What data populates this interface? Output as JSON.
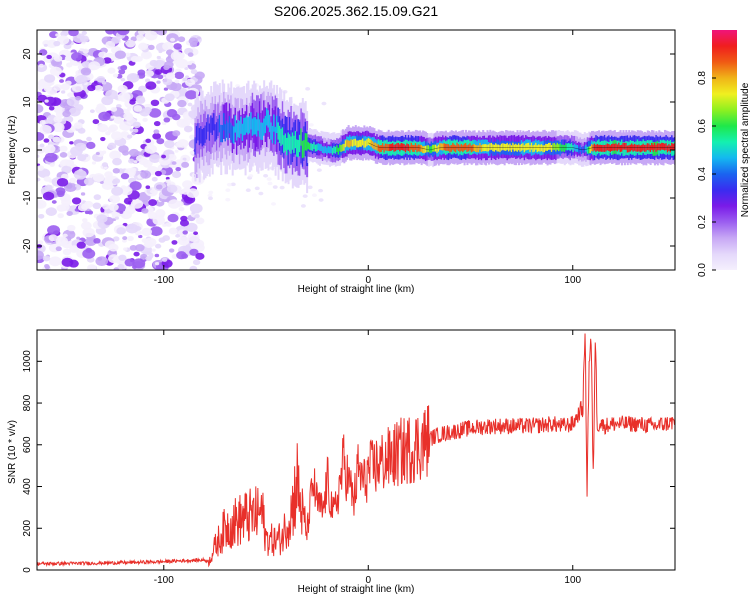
{
  "figure_title": "S206.2025.362.15.09.G21",
  "colors": {
    "snr_line": "#e8302a",
    "frame": "#000000",
    "background": "#ffffff",
    "colorbar": [
      "#f5f0fd",
      "#e4d8fb",
      "#c7a8f5",
      "#9b5ef0",
      "#7a1be8",
      "#3a2cf0",
      "#1a64f0",
      "#14b8f0",
      "#14f0b0",
      "#1ee84a",
      "#8ef020",
      "#f0f020",
      "#f0b418",
      "#f05a14",
      "#f01e1e",
      "#f0147a"
    ]
  },
  "chart_data": [
    {
      "type": "heatmap",
      "title": "",
      "xlabel": "Height of straight line (km)",
      "ylabel": "Frequency (Hz)",
      "xlim": [
        -162,
        150
      ],
      "ylim": [
        -25,
        25
      ],
      "xticks": [
        -100,
        0,
        100
      ],
      "yticks": [
        -20,
        -10,
        0,
        10,
        20
      ],
      "colorbar": {
        "label": "Normalized spectral amplitude",
        "range": [
          0,
          1
        ],
        "ticks": [
          0.0,
          0.2,
          0.4,
          0.6,
          0.8
        ]
      },
      "ridge": {
        "description": "dominant frequency track (Hz) vs height (km)",
        "x": [
          -85,
          -80,
          -75,
          -70,
          -65,
          -60,
          -55,
          -50,
          -45,
          -40,
          -35,
          -30,
          -25,
          -20,
          -15,
          -10,
          -5,
          0,
          5,
          10,
          15,
          20,
          25,
          30,
          35,
          40,
          50,
          60,
          70,
          80,
          90,
          100,
          105,
          110,
          120,
          130,
          140,
          150
        ],
        "freq": [
          2,
          4,
          4.5,
          5,
          4,
          4.5,
          5,
          5.5,
          4,
          2,
          1.5,
          1,
          0.5,
          0,
          0,
          1.5,
          1.5,
          1.5,
          0.5,
          0.5,
          0.5,
          0.5,
          0.5,
          0,
          0.5,
          0.5,
          0.5,
          0.5,
          0.5,
          0.5,
          0.5,
          0.5,
          0,
          0.5,
          0.5,
          0.5,
          0.5,
          0.5
        ],
        "amp": [
          0.3,
          0.35,
          0.35,
          0.4,
          0.45,
          0.45,
          0.5,
          0.45,
          0.5,
          0.55,
          0.55,
          0.6,
          0.5,
          0.45,
          0.6,
          0.8,
          0.7,
          0.75,
          0.85,
          0.9,
          0.92,
          0.9,
          0.85,
          0.6,
          0.8,
          0.9,
          0.85,
          0.7,
          0.7,
          0.75,
          0.7,
          0.5,
          0.35,
          0.9,
          0.95,
          0.9,
          0.95,
          0.9
        ]
      },
      "noise_region_x": [
        -162,
        -82
      ]
    },
    {
      "type": "line",
      "title": "",
      "xlabel": "Height of straight line (km)",
      "ylabel": "SNR (10 * v/v)",
      "xlim": [
        -162,
        150
      ],
      "ylim": [
        0,
        1150
      ],
      "xticks": [
        -100,
        0,
        100
      ],
      "yticks": [
        0,
        200,
        400,
        600,
        800,
        1000
      ],
      "series": [
        {
          "name": "SNR",
          "x": [
            -162,
            -140,
            -120,
            -100,
            -90,
            -80,
            -78,
            -75,
            -70,
            -65,
            -60,
            -55,
            -52,
            -50,
            -45,
            -42,
            -40,
            -37,
            -35,
            -32,
            -30,
            -27,
            -25,
            -22,
            -20,
            -17,
            -15,
            -12,
            -10,
            -7,
            -5,
            -2,
            0,
            5,
            10,
            15,
            20,
            25,
            30,
            35,
            40,
            50,
            60,
            70,
            80,
            90,
            95,
            100,
            103,
            105,
            106,
            107,
            108,
            109,
            110,
            111,
            112,
            113,
            115,
            120,
            130,
            140,
            150
          ],
          "y": [
            30,
            32,
            35,
            40,
            45,
            48,
            40,
            110,
            200,
            230,
            250,
            260,
            280,
            150,
            140,
            160,
            220,
            300,
            430,
            250,
            180,
            420,
            320,
            280,
            430,
            260,
            350,
            520,
            440,
            330,
            480,
            420,
            470,
            510,
            530,
            560,
            580,
            600,
            630,
            650,
            660,
            680,
            690,
            690,
            690,
            700,
            690,
            700,
            750,
            790,
            1150,
            390,
            1000,
            1100,
            430,
            1120,
            700,
            720,
            690,
            700,
            700,
            690,
            710
          ]
        }
      ]
    }
  ]
}
